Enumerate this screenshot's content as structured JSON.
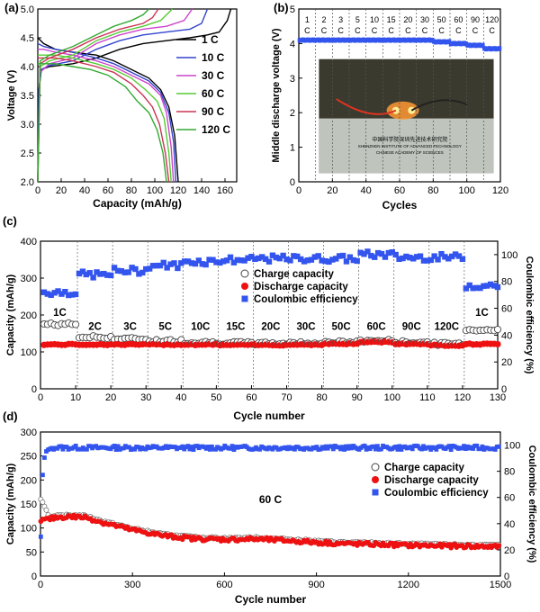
{
  "chart_data": [
    {
      "panel": "(a)",
      "type": "line",
      "xlabel": "Capacity (mAh/g)",
      "ylabel": "Voltage (V)",
      "xlim": [
        0,
        170
      ],
      "ylim": [
        2.0,
        5.0
      ],
      "xticks": [
        0,
        20,
        40,
        60,
        80,
        100,
        120,
        140,
        160
      ],
      "yticks": [
        2.0,
        2.5,
        3.0,
        3.5,
        4.0,
        4.5,
        5.0
      ],
      "legend_position": "right",
      "series": [
        {
          "name": "1 C",
          "color": "#000000",
          "charge": [
            [
              0,
              2.0
            ],
            [
              1,
              3.6
            ],
            [
              3,
              3.95
            ],
            [
              10,
              4.0
            ],
            [
              30,
              4.05
            ],
            [
              50,
              4.15
            ],
            [
              70,
              4.3
            ],
            [
              90,
              4.4
            ],
            [
              110,
              4.45
            ],
            [
              130,
              4.5
            ],
            [
              145,
              4.55
            ],
            [
              155,
              4.6
            ],
            [
              162,
              4.8
            ],
            [
              165,
              5.0
            ]
          ],
          "discharge": [
            [
              0,
              4.5
            ],
            [
              5,
              4.4
            ],
            [
              15,
              4.3
            ],
            [
              30,
              4.25
            ],
            [
              50,
              4.2
            ],
            [
              65,
              4.1
            ],
            [
              80,
              3.95
            ],
            [
              95,
              3.8
            ],
            [
              105,
              3.6
            ],
            [
              112,
              3.3
            ],
            [
              117,
              2.8
            ],
            [
              120,
              2.0
            ]
          ]
        },
        {
          "name": "10 C",
          "color": "#3344cc",
          "charge": [
            [
              0,
              2.0
            ],
            [
              1,
              3.6
            ],
            [
              3,
              3.95
            ],
            [
              10,
              4.02
            ],
            [
              30,
              4.1
            ],
            [
              50,
              4.3
            ],
            [
              70,
              4.45
            ],
            [
              90,
              4.55
            ],
            [
              110,
              4.6
            ],
            [
              130,
              4.65
            ],
            [
              140,
              4.75
            ],
            [
              145,
              5.0
            ]
          ],
          "discharge": [
            [
              0,
              4.4
            ],
            [
              5,
              4.35
            ],
            [
              15,
              4.3
            ],
            [
              30,
              4.25
            ],
            [
              50,
              4.15
            ],
            [
              65,
              4.05
            ],
            [
              80,
              3.9
            ],
            [
              95,
              3.75
            ],
            [
              105,
              3.55
            ],
            [
              112,
              3.2
            ],
            [
              116,
              2.7
            ],
            [
              118,
              2.0
            ]
          ]
        },
        {
          "name": "30 C",
          "color": "#cc44cc",
          "charge": [
            [
              0,
              2.0
            ],
            [
              2,
              3.9
            ],
            [
              10,
              4.05
            ],
            [
              30,
              4.15
            ],
            [
              50,
              4.4
            ],
            [
              70,
              4.55
            ],
            [
              90,
              4.65
            ],
            [
              110,
              4.7
            ],
            [
              125,
              4.8
            ],
            [
              132,
              5.0
            ]
          ],
          "discharge": [
            [
              0,
              4.3
            ],
            [
              5,
              4.3
            ],
            [
              15,
              4.25
            ],
            [
              30,
              4.2
            ],
            [
              50,
              4.1
            ],
            [
              65,
              4.0
            ],
            [
              80,
              3.85
            ],
            [
              95,
              3.7
            ],
            [
              105,
              3.5
            ],
            [
              110,
              3.2
            ],
            [
              114,
              2.6
            ],
            [
              116,
              2.0
            ]
          ]
        },
        {
          "name": "60 C",
          "color": "#55cc33",
          "charge": [
            [
              0,
              2.0
            ],
            [
              2,
              4.0
            ],
            [
              10,
              4.1
            ],
            [
              30,
              4.2
            ],
            [
              50,
              4.45
            ],
            [
              70,
              4.6
            ],
            [
              90,
              4.7
            ],
            [
              105,
              4.8
            ],
            [
              115,
              5.0
            ]
          ],
          "discharge": [
            [
              0,
              4.2
            ],
            [
              5,
              4.2
            ],
            [
              15,
              4.2
            ],
            [
              30,
              4.15
            ],
            [
              50,
              4.05
            ],
            [
              65,
              3.95
            ],
            [
              80,
              3.8
            ],
            [
              92,
              3.6
            ],
            [
              102,
              3.4
            ],
            [
              108,
              3.1
            ],
            [
              112,
              2.5
            ],
            [
              114,
              2.0
            ]
          ]
        },
        {
          "name": "90 C",
          "color": "#cc3355",
          "charge": [
            [
              0,
              2.0
            ],
            [
              2,
              4.05
            ],
            [
              10,
              4.15
            ],
            [
              30,
              4.3
            ],
            [
              50,
              4.5
            ],
            [
              70,
              4.65
            ],
            [
              90,
              4.75
            ],
            [
              98,
              4.85
            ],
            [
              103,
              5.0
            ]
          ],
          "discharge": [
            [
              0,
              4.15
            ],
            [
              5,
              4.15
            ],
            [
              15,
              4.15
            ],
            [
              30,
              4.1
            ],
            [
              50,
              4.0
            ],
            [
              65,
              3.9
            ],
            [
              80,
              3.7
            ],
            [
              90,
              3.5
            ],
            [
              98,
              3.3
            ],
            [
              104,
              3.0
            ],
            [
              109,
              2.5
            ],
            [
              112,
              2.0
            ]
          ]
        },
        {
          "name": "120 C",
          "color": "#33aa33",
          "charge": [
            [
              0,
              2.0
            ],
            [
              2,
              4.1
            ],
            [
              10,
              4.2
            ],
            [
              30,
              4.35
            ],
            [
              50,
              4.55
            ],
            [
              65,
              4.7
            ],
            [
              80,
              4.8
            ],
            [
              90,
              4.9
            ],
            [
              95,
              5.0
            ]
          ],
          "discharge": [
            [
              0,
              4.05
            ],
            [
              5,
              4.05
            ],
            [
              15,
              4.05
            ],
            [
              30,
              4.0
            ],
            [
              45,
              3.95
            ],
            [
              60,
              3.85
            ],
            [
              75,
              3.65
            ],
            [
              85,
              3.4
            ],
            [
              95,
              3.2
            ],
            [
              102,
              2.9
            ],
            [
              107,
              2.5
            ],
            [
              110,
              2.0
            ]
          ]
        }
      ]
    },
    {
      "panel": "(b)",
      "type": "scatter",
      "xlabel": "Cycles",
      "ylabel": "Middle discharge voltage (V)",
      "xlim": [
        0,
        120
      ],
      "ylim": [
        0,
        5
      ],
      "xticks": [
        0,
        20,
        40,
        60,
        80,
        100,
        120
      ],
      "yticks": [
        0,
        1,
        2,
        3,
        4,
        5
      ],
      "color": "#3355ee",
      "segments": [
        {
          "label": "1 C",
          "range": [
            0,
            10
          ],
          "value": 4.1
        },
        {
          "label": "2 C",
          "range": [
            10,
            20
          ],
          "value": 4.1
        },
        {
          "label": "3 C",
          "range": [
            20,
            30
          ],
          "value": 4.1
        },
        {
          "label": "5 C",
          "range": [
            30,
            40
          ],
          "value": 4.1
        },
        {
          "label": "10 C",
          "range": [
            40,
            50
          ],
          "value": 4.1
        },
        {
          "label": "15 C",
          "range": [
            50,
            60
          ],
          "value": 4.1
        },
        {
          "label": "20 C",
          "range": [
            60,
            70
          ],
          "value": 4.1
        },
        {
          "label": "30 C",
          "range": [
            70,
            80
          ],
          "value": 4.1
        },
        {
          "label": "50 C",
          "range": [
            80,
            90
          ],
          "value": 4.05
        },
        {
          "label": "60 C",
          "range": [
            90,
            100
          ],
          "value": 4.0
        },
        {
          "label": "90 C",
          "range": [
            100,
            110
          ],
          "value": 3.95
        },
        {
          "label": "120 C",
          "range": [
            110,
            120
          ],
          "value": 3.85
        }
      ],
      "inset_photo_text": [
        "中国科学院深圳先进技术研究院",
        "SHENZHEN INSTITUTE OF ADVANCED TECHNOLOGY",
        "CHINESE ACADEMY OF SCIENCES"
      ]
    },
    {
      "panel": "(c)",
      "type": "scatter",
      "xlabel": "Cycle number",
      "ylabel": "Capacity (mAh/g)",
      "y2label": "Coulombic efficiency (%)",
      "xlim": [
        0,
        130
      ],
      "ylim": [
        0,
        400
      ],
      "y2lim": [
        0,
        110
      ],
      "xticks": [
        0,
        10,
        20,
        30,
        40,
        50,
        60,
        70,
        80,
        90,
        100,
        110,
        120,
        130
      ],
      "yticks": [
        0,
        100,
        200,
        300,
        400
      ],
      "y2ticks": [
        0,
        20,
        40,
        60,
        80,
        100
      ],
      "legend": [
        "Charge capacity",
        "Discharge capacity",
        "Coulombic efficiency"
      ],
      "segments": [
        {
          "label": "1C",
          "range": [
            1,
            10
          ],
          "charge": 175,
          "discharge": 120,
          "ce": 72
        },
        {
          "label": "2C",
          "range": [
            11,
            20
          ],
          "charge": 140,
          "discharge": 120,
          "ce": 85
        },
        {
          "label": "3C",
          "range": [
            21,
            30
          ],
          "charge": 135,
          "discharge": 120,
          "ce": 88
        },
        {
          "label": "5C",
          "range": [
            31,
            40
          ],
          "charge": 130,
          "discharge": 120,
          "ce": 92
        },
        {
          "label": "10C",
          "range": [
            41,
            50
          ],
          "charge": 126,
          "discharge": 120,
          "ce": 95
        },
        {
          "label": "15C",
          "range": [
            51,
            60
          ],
          "charge": 124,
          "discharge": 119,
          "ce": 96
        },
        {
          "label": "20C",
          "range": [
            61,
            70
          ],
          "charge": 123,
          "discharge": 119,
          "ce": 97
        },
        {
          "label": "30C",
          "range": [
            71,
            80
          ],
          "charge": 124,
          "discharge": 120,
          "ce": 97
        },
        {
          "label": "50C",
          "range": [
            81,
            90
          ],
          "charge": 126,
          "discharge": 122,
          "ce": 97
        },
        {
          "label": "60C",
          "range": [
            91,
            100
          ],
          "charge": 130,
          "discharge": 127,
          "ce": 100
        },
        {
          "label": "90C",
          "range": [
            101,
            110
          ],
          "charge": 126,
          "discharge": 122,
          "ce": 98
        },
        {
          "label": "120C",
          "range": [
            111,
            120
          ],
          "charge": 122,
          "discharge": 118,
          "ce": 98
        },
        {
          "label": "1C",
          "range": [
            121,
            130
          ],
          "charge": 160,
          "discharge": 121,
          "ce": 77
        }
      ]
    },
    {
      "panel": "(d)",
      "type": "scatter",
      "xlabel": "Cycle number",
      "ylabel": "Capacity (mAh/g)",
      "y2label": "Coulombic efficiency (%)",
      "annotation": "60 C",
      "xlim": [
        0,
        1500
      ],
      "ylim": [
        0,
        300
      ],
      "y2lim": [
        0,
        110
      ],
      "xticks": [
        0,
        300,
        600,
        900,
        1200,
        1500
      ],
      "yticks": [
        0,
        50,
        100,
        150,
        200,
        250,
        300
      ],
      "y2ticks": [
        0,
        20,
        40,
        60,
        80,
        100
      ],
      "legend": [
        "Charge capacity",
        "Discharge capacity",
        "Coulombic efficiency"
      ],
      "discharge_trend": [
        [
          0,
          115
        ],
        [
          50,
          122
        ],
        [
          100,
          124
        ],
        [
          150,
          122
        ],
        [
          200,
          112
        ],
        [
          300,
          96
        ],
        [
          400,
          84
        ],
        [
          500,
          78
        ],
        [
          600,
          76
        ],
        [
          700,
          77
        ],
        [
          800,
          74
        ],
        [
          900,
          70
        ],
        [
          1000,
          67
        ],
        [
          1100,
          66
        ],
        [
          1200,
          64
        ],
        [
          1300,
          63
        ],
        [
          1400,
          62
        ],
        [
          1500,
          61
        ]
      ],
      "ce_trend": [
        [
          1,
          30
        ],
        [
          5,
          70
        ],
        [
          10,
          88
        ],
        [
          20,
          96
        ],
        [
          40,
          98
        ],
        [
          1500,
          98
        ]
      ]
    }
  ],
  "labels": {
    "panel_a": "(a)",
    "panel_b": "(b)",
    "panel_c": "(c)",
    "panel_d": "(d)"
  }
}
